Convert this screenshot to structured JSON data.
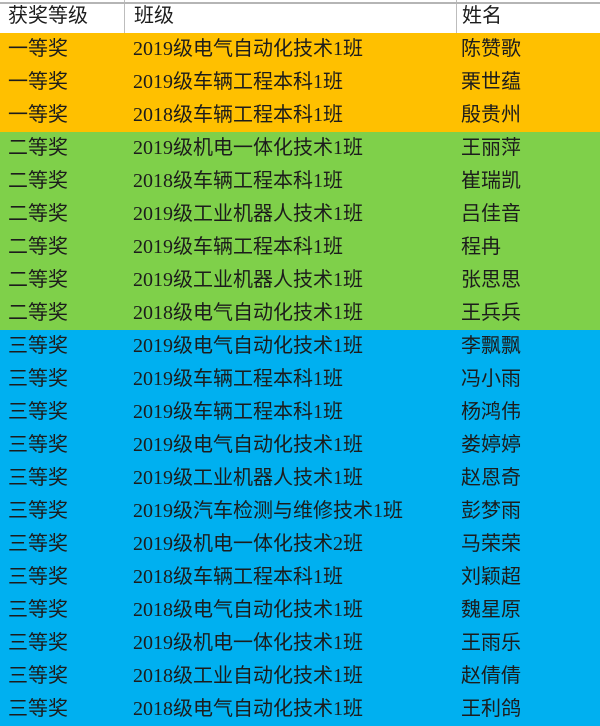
{
  "table": {
    "columns": [
      {
        "key": "award",
        "label": "获奖等级"
      },
      {
        "key": "class",
        "label": "班级"
      },
      {
        "key": "name",
        "label": "姓名"
      }
    ],
    "rows": [
      {
        "award": "一等奖",
        "class": "2019级电气自动化技术1班",
        "name": "陈赞歌",
        "tier": "first_prize"
      },
      {
        "award": "一等奖",
        "class": "2019级车辆工程本科1班",
        "name": "栗世蕴",
        "tier": "first_prize"
      },
      {
        "award": "一等奖",
        "class": "2018级车辆工程本科1班",
        "name": "殷贵州",
        "tier": "first_prize"
      },
      {
        "award": "二等奖",
        "class": "2019级机电一体化技术1班",
        "name": "王丽萍",
        "tier": "second_prize"
      },
      {
        "award": "二等奖",
        "class": "2018级车辆工程本科1班",
        "name": "崔瑞凯",
        "tier": "second_prize"
      },
      {
        "award": "二等奖",
        "class": "2019级工业机器人技术1班",
        "name": "吕佳音",
        "tier": "second_prize"
      },
      {
        "award": "二等奖",
        "class": "2019级车辆工程本科1班",
        "name": "程冉",
        "tier": "second_prize"
      },
      {
        "award": "二等奖",
        "class": "2019级工业机器人技术1班",
        "name": "张思思",
        "tier": "second_prize"
      },
      {
        "award": "二等奖",
        "class": "2018级电气自动化技术1班",
        "name": "王兵兵",
        "tier": "second_prize"
      },
      {
        "award": "三等奖",
        "class": "2019级电气自动化技术1班",
        "name": "李飘飘",
        "tier": "third_prize"
      },
      {
        "award": "三等奖",
        "class": "2019级车辆工程本科1班",
        "name": "冯小雨",
        "tier": "third_prize"
      },
      {
        "award": "三等奖",
        "class": "2019级车辆工程本科1班",
        "name": "杨鸿伟",
        "tier": "third_prize"
      },
      {
        "award": "三等奖",
        "class": "2019级电气自动化技术1班",
        "name": "娄婷婷",
        "tier": "third_prize"
      },
      {
        "award": "三等奖",
        "class": "2019级工业机器人技术1班",
        "name": "赵恩奇",
        "tier": "third_prize"
      },
      {
        "award": "三等奖",
        "class": "2019级汽车检测与维修技术1班",
        "name": "彭梦雨",
        "tier": "third_prize"
      },
      {
        "award": "三等奖",
        "class": "2019级机电一体化技术2班",
        "name": "马荣荣",
        "tier": "third_prize"
      },
      {
        "award": "三等奖",
        "class": "2018级车辆工程本科1班",
        "name": "刘颖超",
        "tier": "third_prize"
      },
      {
        "award": "三等奖",
        "class": "2018级电气自动化技术1班",
        "name": "魏星原",
        "tier": "third_prize"
      },
      {
        "award": "三等奖",
        "class": "2019级机电一体化技术1班",
        "name": "王雨乐",
        "tier": "third_prize"
      },
      {
        "award": "三等奖",
        "class": "2018级工业自动化技术1班",
        "name": "赵倩倩",
        "tier": "third_prize"
      },
      {
        "award": "三等奖",
        "class": "2018级电气自动化技术1班",
        "name": "王利鸽",
        "tier": "third_prize"
      }
    ]
  },
  "colors": {
    "first_prize": "#FFC000",
    "second_prize": "#7FD04A",
    "third_prize": "#00B0F0",
    "header_bg": "#FFFFFF",
    "grid_line": "#BDBDBD",
    "text": "#1C1C1C"
  }
}
